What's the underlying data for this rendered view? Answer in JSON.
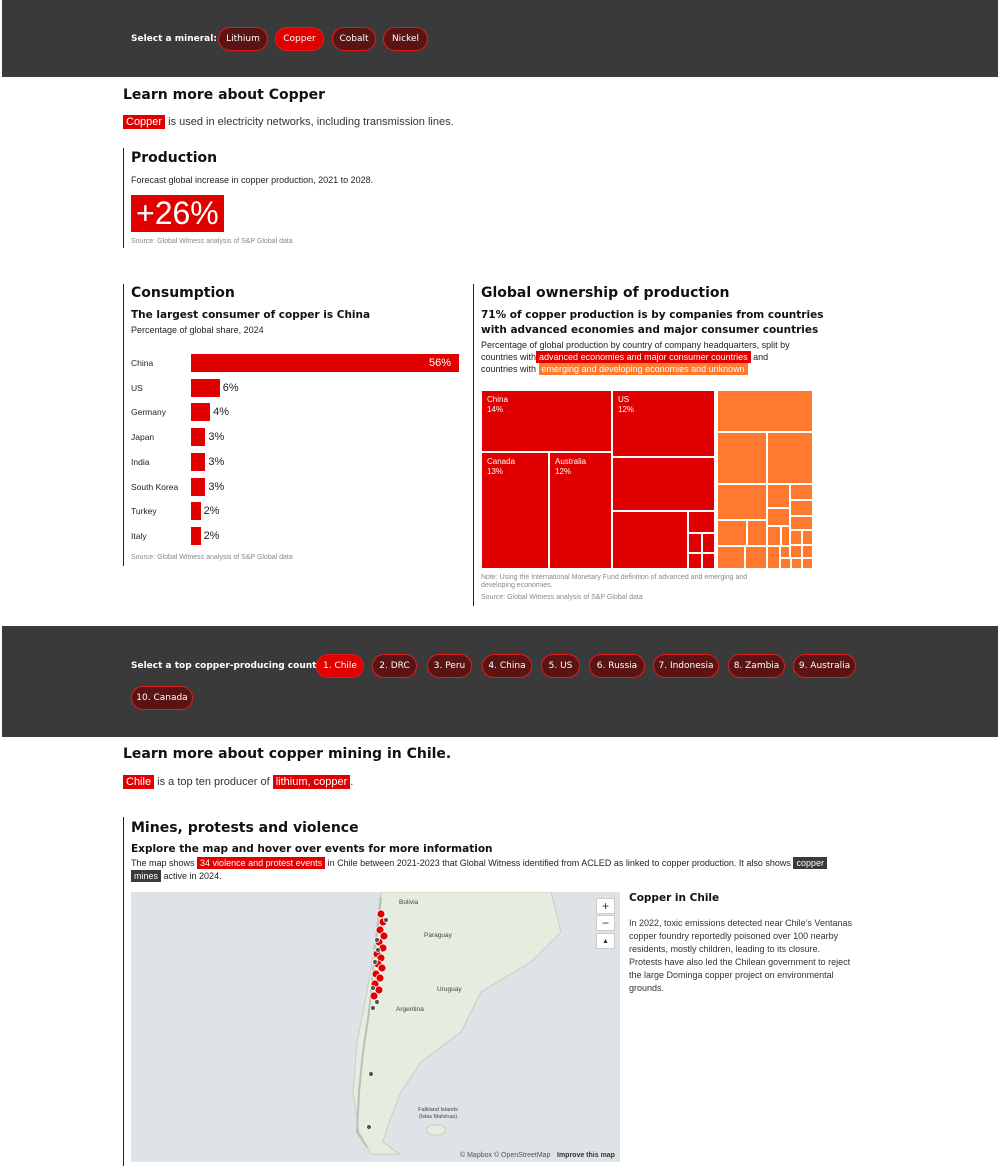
{
  "mineral_selector": {
    "label": "Select a mineral:",
    "options": [
      "Lithium",
      "Copper",
      "Cobalt",
      "Nickel"
    ],
    "selected": "Copper"
  },
  "learn": {
    "title": "Learn more about Copper",
    "highlight": "Copper",
    "text": "is used in electricity networks, including transmission lines."
  },
  "production": {
    "title": "Production",
    "subtitle": "Forecast global increase in copper production, 2021 to 2028.",
    "stat": "+26%",
    "source": "Source: Global Witness analysis of S&P Global data"
  },
  "consumption": {
    "title": "Consumption",
    "headline": "The largest consumer of copper is China",
    "subtitle": "Percentage of global share, 2024",
    "source": "Source: Global Witness analysis of S&P Global data"
  },
  "ownership": {
    "title": "Global ownership of production",
    "headline_1": "71% of copper production is by companies from countries",
    "headline_2": "with advanced economies and major consumer countries",
    "desc_1": "Percentage of global production by country of company headquarters, split by",
    "desc_2_pre": "countries with",
    "desc_2_hl": "advanced economies and major consumer countries",
    "desc_2_post": "and",
    "desc_3_pre": "countries with",
    "desc_3_hl": "emerging and developing economies and unknown",
    "note_1": "Note: Using the International Monetary Fund definition of advanced and emerging and",
    "note_2": "developing economies.",
    "source": "Source: Global Witness analysis of S&P Global data",
    "labels": [
      {
        "country": "China",
        "value": "14%"
      },
      {
        "country": "US",
        "value": "12%"
      },
      {
        "country": "Canada",
        "value": "13%"
      },
      {
        "country": "Australia",
        "value": "12%"
      }
    ],
    "colors": {
      "advanced": "#e00000",
      "emerging": "#ff7a2e"
    }
  },
  "chart_data": [
    {
      "type": "bar",
      "title": "The largest consumer of copper is China",
      "subtitle": "Percentage of global share, 2024",
      "categories": [
        "China",
        "US",
        "Germany",
        "Japan",
        "India",
        "South Korea",
        "Turkey",
        "Italy"
      ],
      "values": [
        56,
        6,
        4,
        3,
        3,
        3,
        2,
        2
      ],
      "value_labels": [
        "56%",
        "6%",
        "4%",
        "3%",
        "3%",
        "3%",
        "2%",
        "2%"
      ],
      "orientation": "horizontal",
      "color": "#e00000"
    },
    {
      "type": "treemap",
      "title": "Global ownership of production",
      "groups": [
        {
          "name": "advanced economies and major consumer countries",
          "value": 71,
          "color": "#e00000"
        },
        {
          "name": "emerging and developing economies and unknown",
          "value": 29,
          "color": "#ff7a2e"
        }
      ],
      "labeled_cells": [
        {
          "name": "China",
          "value": 14
        },
        {
          "name": "US",
          "value": 12
        },
        {
          "name": "Canada",
          "value": 13
        },
        {
          "name": "Australia",
          "value": 12
        }
      ]
    }
  ],
  "country_selector": {
    "label": "Select a top copper-producing country:",
    "options": [
      "1. Chile",
      "2. DRC",
      "3. Peru",
      "4. China",
      "5. US",
      "6. Russia",
      "7. Indonesia",
      "8. Zambia",
      "9. Australia",
      "10. Canada"
    ],
    "selected": "1. Chile"
  },
  "mining": {
    "title": "Learn more about copper mining in Chile.",
    "country": "Chile",
    "mid": "is a top ten producer of",
    "minerals": "lithium, copper",
    "end": "."
  },
  "mines": {
    "title": "Mines, protests and violence",
    "headline": "Explore the map and hover over events for more information",
    "text_1": "The map shows",
    "events_hl": "34 violence and protest events",
    "text_2": "in Chile between 2021-2023 that Global Witness identified from ACLED as linked to copper production. It also shows",
    "mines_hl_1": "copper",
    "mines_hl_2": "mines",
    "text_3": "active in 2024."
  },
  "map": {
    "labels": [
      "Bolivia",
      "Paraguay",
      "Uruguay",
      "Argentina",
      "Falkland Islands (Islas Malvinas)"
    ],
    "zoom_in": "+",
    "zoom_out": "−",
    "compass": "▲",
    "attribution": "© Mapbox © OpenStreetMap",
    "improve": "Improve this map",
    "colors": {
      "land": "#e6ecdf",
      "water": "#dde3e6",
      "event": "#e00000",
      "mine": "#555555"
    }
  },
  "sidebar": {
    "title": "Copper in Chile",
    "text": "In 2022, toxic emissions detected near Chile’s Ventanas copper foundry reportedly poisoned over 100 nearby residents, mostly children, leading to its closure. Protests have also led the Chilean government to reject the large Dominga copper project on environmental grounds."
  }
}
